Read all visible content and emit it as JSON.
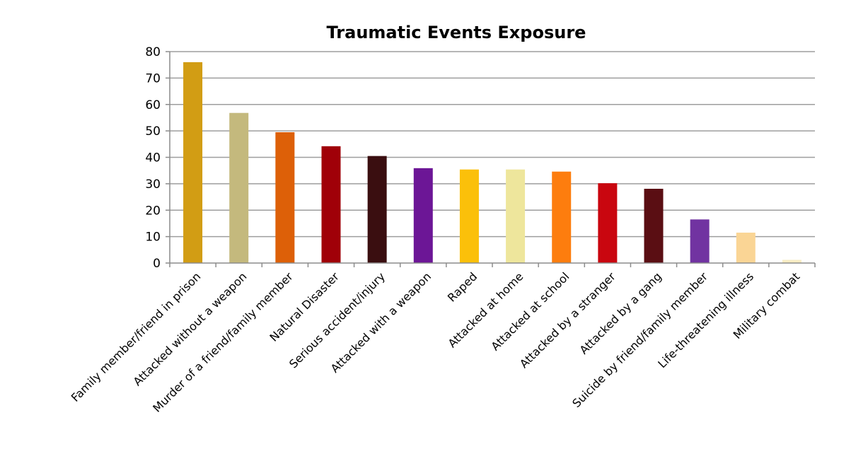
{
  "chart_data": {
    "type": "bar",
    "title": "Traumatic Events Exposure",
    "xlabel": "",
    "ylabel": "",
    "ylim": [
      0,
      80
    ],
    "yticks": [
      "0",
      "10",
      "20",
      "30",
      "40",
      "50",
      "60",
      "70",
      "80"
    ],
    "grid": true,
    "legend": "none",
    "categories": [
      "Family member/friend in prison",
      "Attacked without a weapon",
      "Murder of a friend/family member",
      "Natural Disaster",
      "Serious accident/injury",
      "Attacked with a weapon",
      "Raped",
      "Attacked at home",
      "Attacked at school",
      "Attacked by a stranger",
      "Attacked by a gang",
      "Suicide by friend/family member",
      "Life-threatening illness",
      "Military combat"
    ],
    "values": [
      76,
      56.8,
      49.5,
      44.2,
      40.5,
      35.9,
      35.4,
      35.4,
      34.6,
      30.2,
      28.1,
      16.5,
      11.5,
      1.2
    ],
    "colors": [
      "#D29D14",
      "#C4B97D",
      "#DD6008",
      "#A00008",
      "#3A0E10",
      "#6C1696",
      "#FBC00A",
      "#EEE69C",
      "#FD7D0E",
      "#C9060F",
      "#5A0E13",
      "#7133A1",
      "#FAD595",
      "#F7ECC3"
    ],
    "grid_color": "#9E9E9E",
    "axis_color": "#8C8C8C"
  }
}
